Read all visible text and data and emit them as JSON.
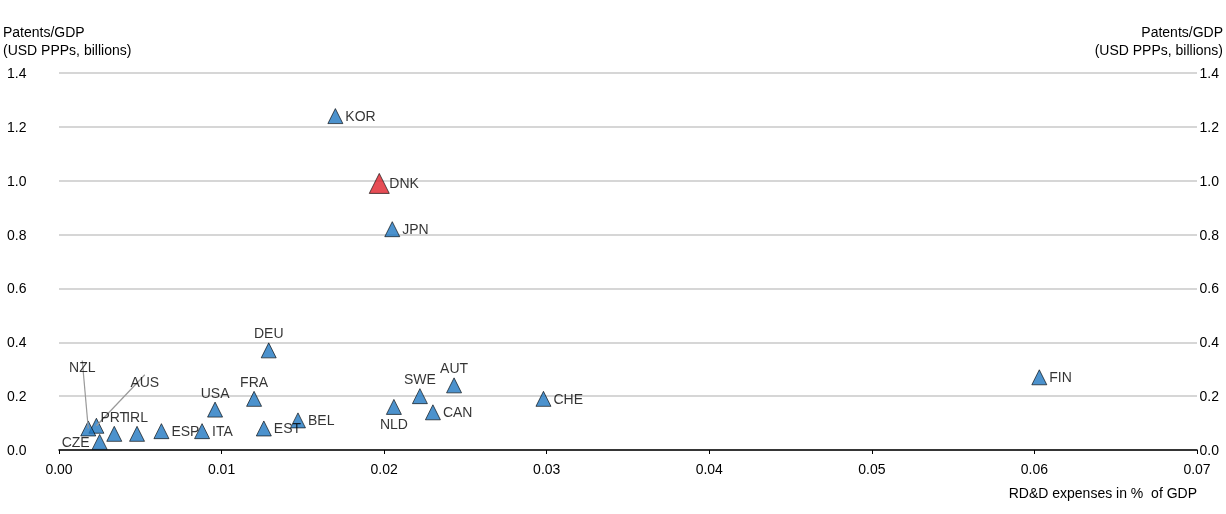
{
  "chart_data": {
    "type": "scatter",
    "xlabel": "RD&D expenses in %  of GDP",
    "ylabel": "Patents/GDP\n(USD PPPs, billions)",
    "y2label": "Patents/GDP\n(USD PPPs, billions)",
    "series": [
      {
        "color": "#1f77c0",
        "x": [
          0.017,
          0.0205,
          0.0129,
          0.0603,
          0.0298,
          0.0243,
          0.0222,
          0.023,
          0.0206,
          0.0147,
          0.0126,
          0.012,
          0.0096,
          0.0088,
          0.0063,
          0.0048,
          0.0034,
          0.0023,
          0.0018,
          0.0025
        ],
        "values": [
          1.24,
          0.82,
          0.37,
          0.27,
          0.19,
          0.24,
          0.2,
          0.14,
          0.16,
          0.11,
          0.08,
          0.19,
          0.15,
          0.07,
          0.07,
          0.06,
          0.06,
          0.09,
          0.08,
          0.03
        ]
      },
      {
        "color": "#e0202a",
        "x": [
          0.0197
        ],
        "values": [
          0.99
        ]
      }
    ],
    "annotations": [
      {
        "text": "KOR",
        "x": 0.017,
        "y": 1.24
      },
      {
        "text": "DNK",
        "x": 0.0197,
        "y": 0.99
      },
      {
        "text": "JPN",
        "x": 0.0205,
        "y": 0.82
      },
      {
        "text": "DEU",
        "x": 0.0129,
        "y": 0.37
      },
      {
        "text": "FIN",
        "x": 0.0603,
        "y": 0.27
      },
      {
        "text": "CHE",
        "x": 0.0298,
        "y": 0.19
      },
      {
        "text": "AUT",
        "x": 0.0243,
        "y": 0.24
      },
      {
        "text": "SWE",
        "x": 0.0222,
        "y": 0.2
      },
      {
        "text": "CAN",
        "x": 0.023,
        "y": 0.14
      },
      {
        "text": "NLD",
        "x": 0.0206,
        "y": 0.16
      },
      {
        "text": "BEL",
        "x": 0.0147,
        "y": 0.11
      },
      {
        "text": "EST",
        "x": 0.0126,
        "y": 0.08
      },
      {
        "text": "FRA",
        "x": 0.012,
        "y": 0.19
      },
      {
        "text": "USA",
        "x": 0.0096,
        "y": 0.15
      },
      {
        "text": "ITA",
        "x": 0.0088,
        "y": 0.07
      },
      {
        "text": "ESP",
        "x": 0.0063,
        "y": 0.07
      },
      {
        "text": "IRL",
        "x": 0.0048,
        "y": 0.06
      },
      {
        "text": "PRT",
        "x": 0.0034,
        "y": 0.06
      },
      {
        "text": "AUS",
        "x": 0.0023,
        "y": 0.09
      },
      {
        "text": "NZL",
        "x": 0.0018,
        "y": 0.08
      },
      {
        "text": "CZE",
        "x": 0.0025,
        "y": 0.03
      }
    ],
    "xlim": [
      0,
      0.07
    ],
    "xticks": [
      {
        "value": 0,
        "label": "0.00"
      },
      {
        "value": 0.01,
        "label": "0.01"
      },
      {
        "value": 0.02,
        "label": "0.02"
      },
      {
        "value": 0.03,
        "label": "0.03"
      },
      {
        "value": 0.04,
        "label": "0.04"
      },
      {
        "value": 0.05,
        "label": "0.05"
      },
      {
        "value": 0.06,
        "label": "0.06"
      },
      {
        "value": 0.07,
        "label": "0.07"
      }
    ],
    "ylim": [
      0,
      1.4
    ],
    "yticks": [
      {
        "value": 0,
        "label": "0.0"
      },
      0.2,
      0.4,
      0.6,
      0.8,
      {
        "value": 1,
        "label": "1.0"
      },
      1.2,
      1.4
    ],
    "y2lim": [
      0,
      1.4
    ],
    "y2ticks": [
      {
        "value": 0,
        "label": "0.0"
      },
      0.2,
      0.4,
      0.6,
      0.8,
      {
        "value": 1,
        "label": "1.0"
      },
      1.2,
      1.4
    ],
    "grid": "y",
    "marker": "triangle"
  }
}
